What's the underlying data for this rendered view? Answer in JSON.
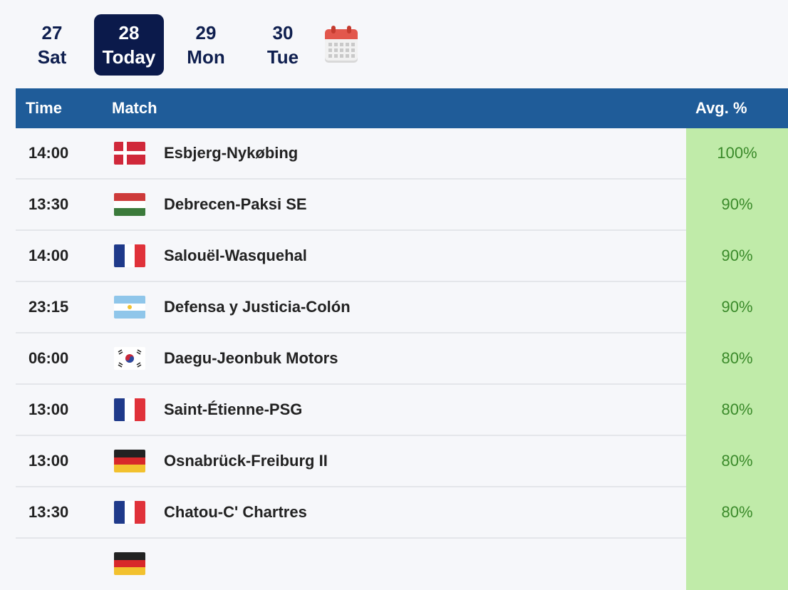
{
  "date_nav": {
    "tabs": [
      {
        "day": "27",
        "label": "Sat",
        "active": false
      },
      {
        "day": "28",
        "label": "Today",
        "active": true
      },
      {
        "day": "29",
        "label": "Mon",
        "active": false
      },
      {
        "day": "30",
        "label": "Tue",
        "active": false
      }
    ],
    "calendar_icon": "calendar-icon"
  },
  "table": {
    "headers": {
      "time": "Time",
      "match": "Match",
      "avg": "Avg. %"
    },
    "rows": [
      {
        "time": "14:00",
        "flag": "denmark-flag-icon",
        "match": "Esbjerg-Nykøbing",
        "avg": "100%"
      },
      {
        "time": "13:30",
        "flag": "hungary-flag-icon",
        "match": "Debrecen-Paksi SE",
        "avg": "90%"
      },
      {
        "time": "14:00",
        "flag": "france-flag-icon",
        "match": "Salouël-Wasquehal",
        "avg": "90%"
      },
      {
        "time": "23:15",
        "flag": "argentina-flag-icon",
        "match": "Defensa y Justicia-Colón",
        "avg": "90%"
      },
      {
        "time": "06:00",
        "flag": "south-korea-flag-icon",
        "match": "Daegu-Jeonbuk Motors",
        "avg": "80%"
      },
      {
        "time": "13:00",
        "flag": "france-flag-icon",
        "match": "Saint-Étienne-PSG",
        "avg": "80%"
      },
      {
        "time": "13:00",
        "flag": "germany-flag-icon",
        "match": "Osnabrück-Freiburg II",
        "avg": "80%"
      },
      {
        "time": "13:30",
        "flag": "france-flag-icon",
        "match": "Chatou-C' Chartres",
        "avg": "80%"
      },
      {
        "time": "",
        "flag": "germany-flag-icon",
        "match": "",
        "avg": ""
      }
    ]
  },
  "colors": {
    "header_bg": "#1f5c99",
    "active_tab_bg": "#0b1a4b",
    "avg_bg": "#c0eba9",
    "avg_text": "#3a8a2a"
  }
}
